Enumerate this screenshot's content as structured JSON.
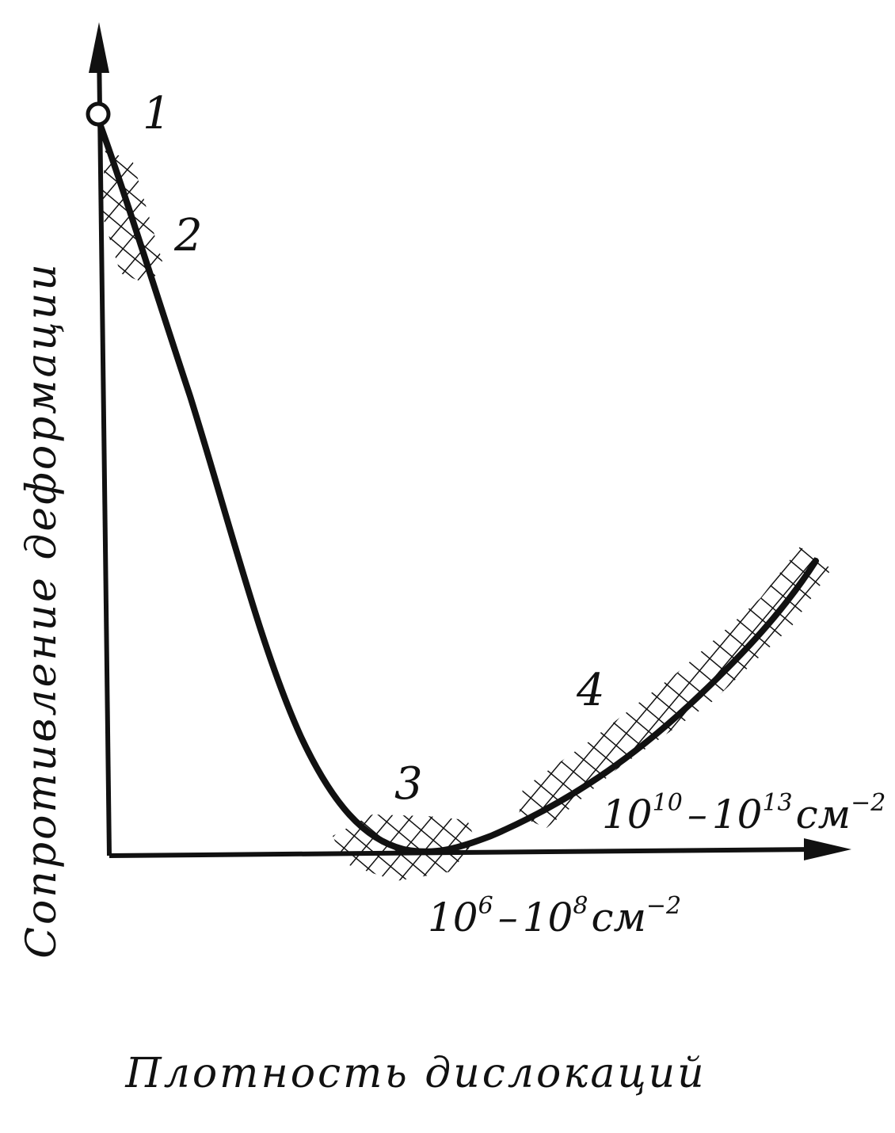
{
  "axes": {
    "y_label": "Сопротивление деформации",
    "x_label": "Плотность дислокаций"
  },
  "points": [
    {
      "id": "1",
      "label": "1"
    },
    {
      "id": "2",
      "label": "2"
    },
    {
      "id": "3",
      "label": "3"
    },
    {
      "id": "4",
      "label": "4"
    }
  ],
  "annotations": {
    "range_3": {
      "base_a": "10",
      "exp_a": "6",
      "dash": "–",
      "base_b": "10",
      "exp_b": "8",
      "unit": "см",
      "unit_exp": "−2"
    },
    "range_4": {
      "base_a": "10",
      "exp_a": "10",
      "dash": "–",
      "base_b": "10",
      "exp_b": "13",
      "unit": "см",
      "unit_exp": "−2"
    }
  },
  "colors": {
    "ink": "#111111",
    "background": "#ffffff"
  }
}
